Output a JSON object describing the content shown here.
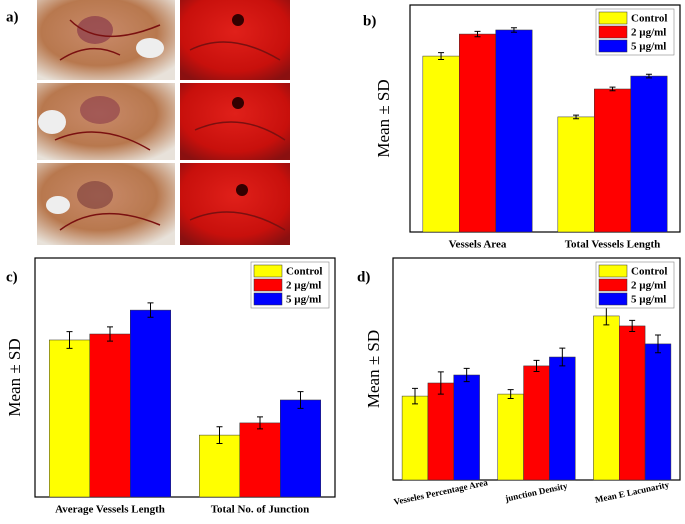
{
  "panel_a": {
    "label": "a)"
  },
  "chart_data": [
    {
      "type": "bar",
      "label": "b)",
      "ylabel": "Mean ± SD",
      "categories": [
        "Vessels Area",
        "Total Vessels Length"
      ],
      "series": [
        {
          "name": "Control",
          "color": "#ffff00",
          "values": [
            77.5,
            50.7
          ],
          "errors": [
            1.5,
            0.8
          ]
        },
        {
          "name": "2 µg/ml",
          "color": "#ff0000",
          "values": [
            87.2,
            63
          ],
          "errors": [
            1.2,
            0.8
          ]
        },
        {
          "name": "5 µg/ml",
          "color": "#0000ff",
          "values": [
            89,
            68.7
          ],
          "errors": [
            1,
            0.8
          ]
        }
      ],
      "ylim": [
        0,
        100
      ],
      "legend": "top-right"
    },
    {
      "type": "bar",
      "label": "c)",
      "ylabel": "Mean ± SD",
      "categories": [
        "Average Vessels Length",
        "Total No. of Junction"
      ],
      "series": [
        {
          "name": "Control",
          "color": "#ffff00",
          "values": [
            65.7,
            25.9
          ],
          "errors": [
            3.5,
            3.5
          ]
        },
        {
          "name": "2 µg/ml",
          "color": "#ff0000",
          "values": [
            68.2,
            31
          ],
          "errors": [
            3,
            2.5
          ]
        },
        {
          "name": "5 µg/ml",
          "color": "#0000ff",
          "values": [
            78.2,
            40.6
          ],
          "errors": [
            3,
            3.5
          ]
        }
      ],
      "ylim": [
        0,
        100
      ],
      "legend": "top-right"
    },
    {
      "type": "bar",
      "label": "d)",
      "ylabel": "Mean ± SD",
      "categories": [
        "Vesseles Percentage Area",
        "junction Density",
        "Mean E Lacunarity"
      ],
      "series": [
        {
          "name": "Control",
          "color": "#ffff00",
          "values": [
            37.8,
            38.7,
            73.9
          ],
          "errors": [
            3.5,
            2,
            4
          ]
        },
        {
          "name": "2 µg/ml",
          "color": "#ff0000",
          "values": [
            43.7,
            51.4,
            69.4
          ],
          "errors": [
            5,
            2.5,
            2.5
          ]
        },
        {
          "name": "5 µg/ml",
          "color": "#0000ff",
          "values": [
            47.3,
            55.4,
            61.3
          ],
          "errors": [
            3,
            4,
            4
          ]
        }
      ],
      "ylim": [
        0,
        100
      ],
      "legend": "top-right"
    }
  ]
}
